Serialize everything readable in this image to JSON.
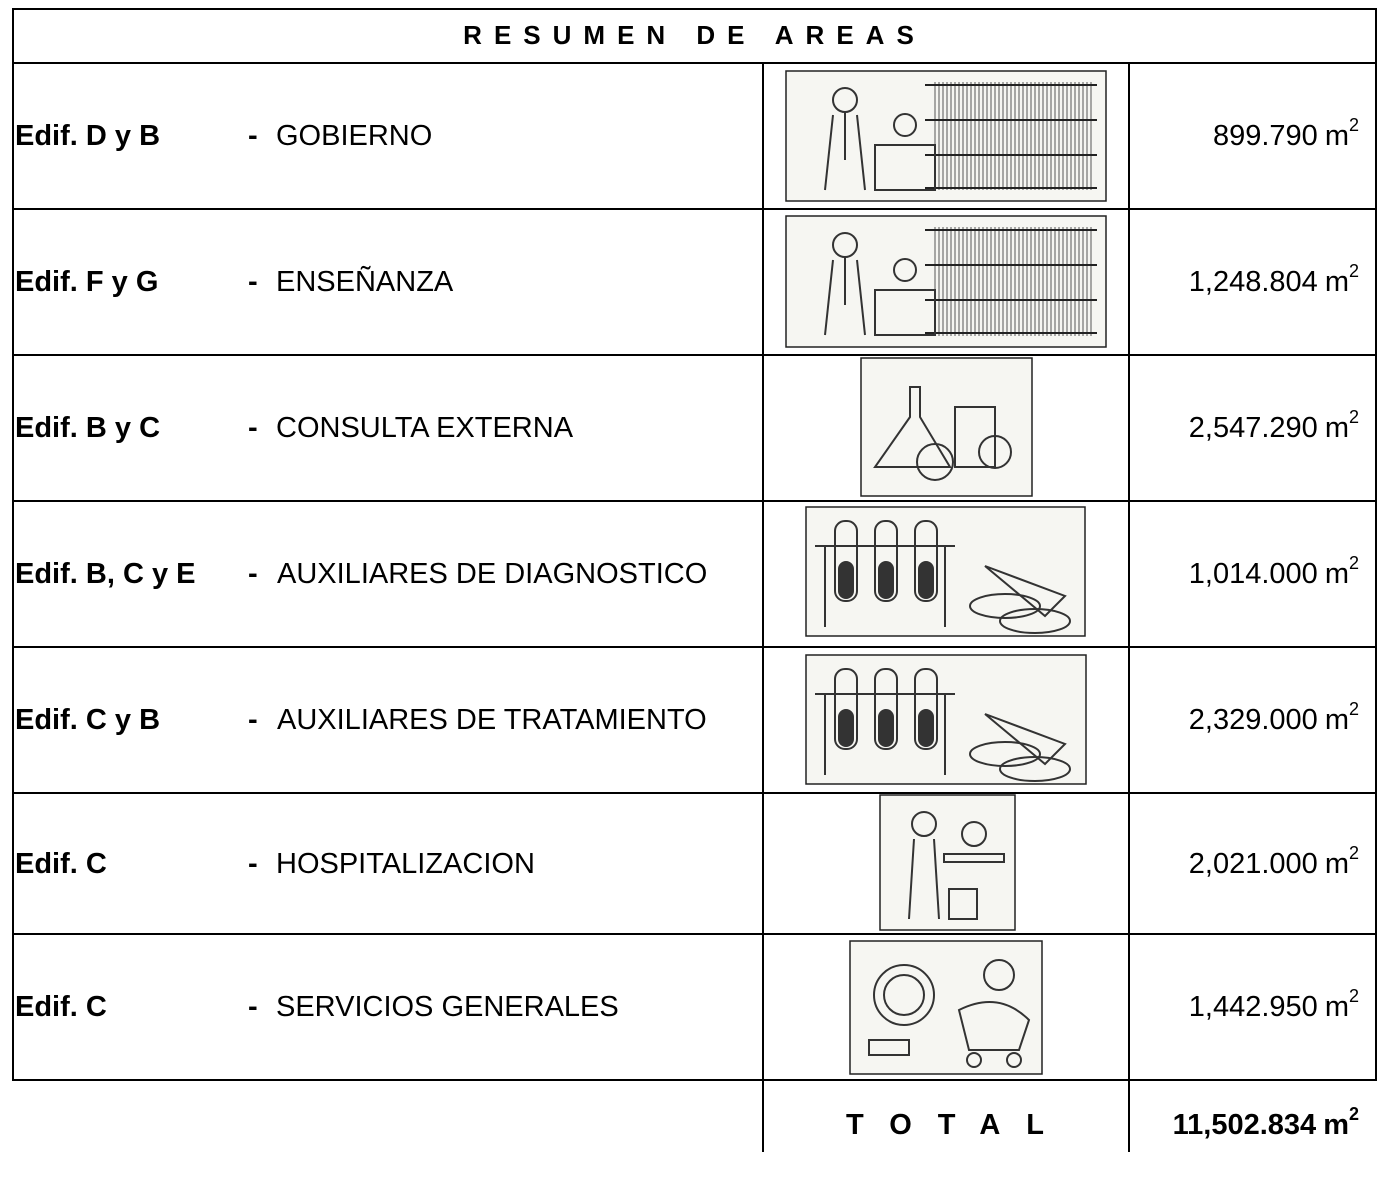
{
  "header": {
    "title": "RESUMEN DE AREAS"
  },
  "unit": {
    "base": "m",
    "exponent": "2"
  },
  "rows": [
    {
      "building": "Edif. D y B",
      "separator": "-",
      "area": "GOBIERNO",
      "value": "899.790"
    },
    {
      "building": "Edif. F y G",
      "separator": "-",
      "area": "ENSEÑANZA",
      "value": "1,248.804"
    },
    {
      "building": "Edif. B y C",
      "separator": "-",
      "area": "CONSULTA EXTERNA",
      "value": "2,547.290"
    },
    {
      "building": "Edif. B, C y E",
      "separator": "-",
      "area": "AUXILIARES DE DIAGNOSTICO",
      "value": "1,014.000"
    },
    {
      "building": "Edif. C y B",
      "separator": "-",
      "area": "AUXILIARES DE TRATAMIENTO",
      "value": "2,329.000"
    },
    {
      "building": "Edif. C",
      "separator": "-",
      "area": "HOSPITALIZACION",
      "value": "2,021.000"
    },
    {
      "building": "Edif. C",
      "separator": "-",
      "area": "SERVICIOS GENERALES",
      "value": "1,442.950"
    }
  ],
  "total": {
    "label": "TOTAL",
    "value": "11,502.834"
  }
}
